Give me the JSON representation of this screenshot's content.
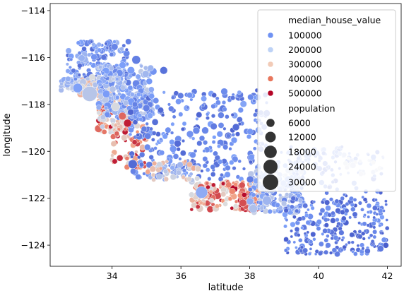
{
  "chart_data": {
    "type": "scatter",
    "title": "",
    "xlabel": "latitude",
    "ylabel": "longitude",
    "xlim": [
      32.2,
      42.4
    ],
    "ylim": [
      -124.9,
      -113.7
    ],
    "xticks": [
      34,
      36,
      38,
      40,
      42
    ],
    "yticks": [
      -114,
      -116,
      -118,
      -120,
      -122,
      -124
    ],
    "grid": false,
    "legend_position": "top-right",
    "hue": {
      "name": "median_house_value",
      "entries": [
        {
          "label": "100000",
          "color": "#6f92f3"
        },
        {
          "label": "200000",
          "color": "#bdd2f6"
        },
        {
          "label": "300000",
          "color": "#f2cbb7"
        },
        {
          "label": "400000",
          "color": "#e8765c"
        },
        {
          "label": "500000",
          "color": "#b40426"
        }
      ]
    },
    "size": {
      "name": "population",
      "entries": [
        {
          "label": "6000",
          "value": 6000
        },
        {
          "label": "12000",
          "value": 12000
        },
        {
          "label": "18000",
          "value": 18000
        },
        {
          "label": "24000",
          "value": 24000
        },
        {
          "label": "30000",
          "value": 30000
        }
      ]
    },
    "regions": [
      {
        "x": [
          32.5,
          33.6
        ],
        "y": [
          -117.4,
          -116.9
        ],
        "n": 90,
        "hue": [
          130000,
          240000
        ],
        "pop": [
          300,
          4000
        ]
      },
      {
        "x": [
          32.7,
          34.5
        ],
        "y": [
          -117.1,
          -115.3
        ],
        "n": 170,
        "hue": [
          60000,
          180000
        ],
        "pop": [
          200,
          3500
        ]
      },
      {
        "x": [
          33.0,
          34.0
        ],
        "y": [
          -117.6,
          -116.8
        ],
        "n": 80,
        "hue": [
          180000,
          340000
        ],
        "pop": [
          500,
          6000
        ]
      },
      {
        "x": [
          33.6,
          34.6
        ],
        "y": [
          -119.2,
          -117.8
        ],
        "n": 110,
        "hue": [
          220000,
          500001
        ],
        "pop": [
          500,
          5000
        ]
      },
      {
        "x": [
          33.6,
          35.2
        ],
        "y": [
          -118.6,
          -116.3
        ],
        "n": 220,
        "hue": [
          90000,
          230000
        ],
        "pop": [
          300,
          5000
        ]
      },
      {
        "x": [
          34.0,
          35.0
        ],
        "y": [
          -120.7,
          -118.8
        ],
        "n": 70,
        "hue": [
          260000,
          500001
        ],
        "pop": [
          300,
          3000
        ]
      },
      {
        "x": [
          34.5,
          38.5
        ],
        "y": [
          -121.2,
          -117.4
        ],
        "n": 320,
        "hue": [
          50000,
          150000
        ],
        "pop": [
          200,
          4000
        ]
      },
      {
        "x": [
          35.0,
          36.5
        ],
        "y": [
          -121.3,
          -120.4
        ],
        "n": 50,
        "hue": [
          150000,
          360000
        ],
        "pop": [
          300,
          3000
        ]
      },
      {
        "x": [
          36.3,
          38.4
        ],
        "y": [
          -122.5,
          -121.3
        ],
        "n": 160,
        "hue": [
          240000,
          500001
        ],
        "pop": [
          300,
          5000
        ]
      },
      {
        "x": [
          37.7,
          38.2
        ],
        "y": [
          -122.5,
          -121.8
        ],
        "n": 70,
        "hue": [
          380000,
          500001
        ],
        "pop": [
          300,
          3000
        ]
      },
      {
        "x": [
          38.0,
          39.6
        ],
        "y": [
          -122.6,
          -120.8
        ],
        "n": 210,
        "hue": [
          80000,
          230000
        ],
        "pop": [
          200,
          4000
        ]
      },
      {
        "x": [
          38.8,
          41.0
        ],
        "y": [
          -120.8,
          -119.8
        ],
        "n": 60,
        "hue": [
          60000,
          160000
        ],
        "pop": [
          100,
          2000
        ]
      },
      {
        "x": [
          39.0,
          42.0
        ],
        "y": [
          -124.4,
          -122.0
        ],
        "n": 210,
        "hue": [
          40000,
          140000
        ],
        "pop": [
          100,
          2500
        ]
      },
      {
        "x": [
          40.0,
          41.9
        ],
        "y": [
          -124.3,
          -120.0
        ],
        "n": 90,
        "hue": [
          40000,
          120000
        ],
        "pop": [
          100,
          2000
        ]
      },
      {
        "x": [
          40.6,
          41.9
        ],
        "y": [
          -121.0,
          -120.1
        ],
        "n": 30,
        "hue": [
          170000,
          250000
        ],
        "pop": [
          100,
          1500
        ]
      }
    ],
    "points": [
      {
        "x": 33.35,
        "y": -117.55,
        "hue": 210000,
        "pop": 28000
      },
      {
        "x": 36.6,
        "y": -121.75,
        "hue": 160000,
        "pop": 16000
      },
      {
        "x": 34.6,
        "y": -120.55,
        "hue": 60000,
        "pop": 8000
      },
      {
        "x": 34.7,
        "y": -116.1,
        "hue": 90000,
        "pop": 7000
      },
      {
        "x": 35.5,
        "y": -116.55,
        "hue": 70000,
        "pop": 5000
      },
      {
        "x": 34.1,
        "y": -118.1,
        "hue": 250000,
        "pop": 7000
      },
      {
        "x": 33.0,
        "y": -117.3,
        "hue": 140000,
        "pop": 9000
      },
      {
        "x": 34.3,
        "y": -118.5,
        "hue": 420000,
        "pop": 5000
      },
      {
        "x": 34.45,
        "y": -118.8,
        "hue": 480000,
        "pop": 5500
      },
      {
        "x": 37.8,
        "y": -122.2,
        "hue": 440000,
        "pop": 5000
      },
      {
        "x": 38.1,
        "y": -122.45,
        "hue": 200000,
        "pop": 7000
      },
      {
        "x": 38.5,
        "y": -122.1,
        "hue": 180000,
        "pop": 8000
      },
      {
        "x": 39.2,
        "y": -121.4,
        "hue": 110000,
        "pop": 6000
      },
      {
        "x": 41.8,
        "y": -124.15,
        "hue": 80000,
        "pop": 3000
      },
      {
        "x": 41.0,
        "y": -120.6,
        "hue": 220000,
        "pop": 2500
      }
    ]
  }
}
